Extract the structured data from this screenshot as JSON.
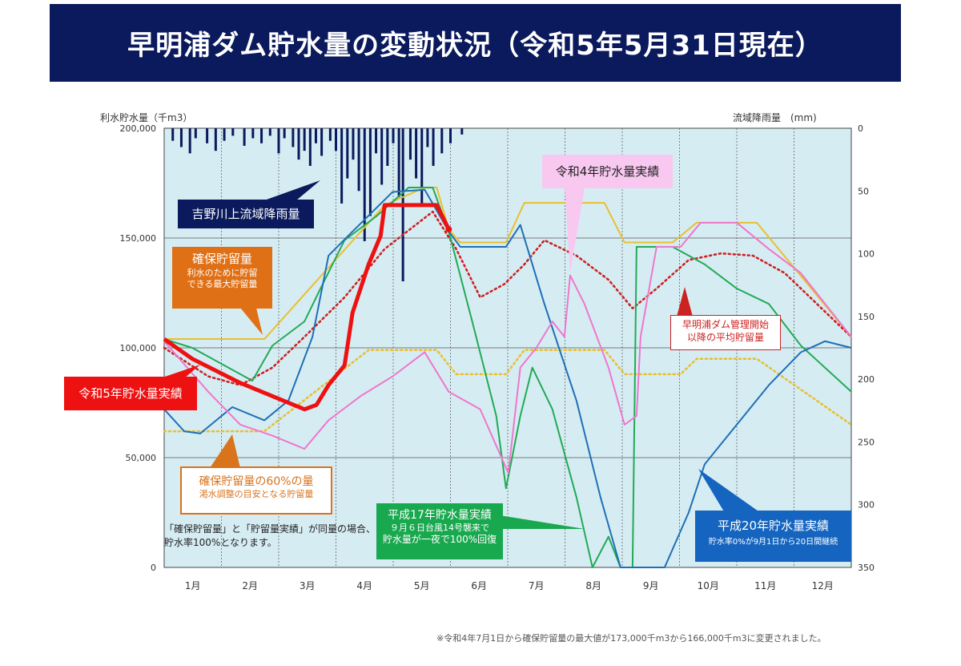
{
  "title": "早明浦ダム貯水量の変動状況（令和5年5月31日現在）",
  "chart_data": {
    "type": "line",
    "title": "早明浦ダム貯水量の変動状況（令和5年5月31日現在）",
    "ylabel": "利水貯水量（千m3）",
    "y2label": "流域降雨量　(mm)",
    "ylim": [
      0,
      200000
    ],
    "y2lim": [
      350,
      0
    ],
    "yticks": [
      "0",
      "50,000",
      "100,000",
      "150,000",
      "200,000"
    ],
    "y2ticks": [
      "0",
      "50",
      "100",
      "150",
      "200",
      "250",
      "300",
      "350"
    ],
    "xlim": [
      0,
      12
    ],
    "x_unit": "months since Jan 1",
    "categories": [
      "1月",
      "2月",
      "3月",
      "4月",
      "5月",
      "6月",
      "7月",
      "8月",
      "9月",
      "10月",
      "11月",
      "12月"
    ],
    "grid": true,
    "colors": {
      "r5": "#ee1111",
      "r4": "#ee77cc",
      "h17": "#22aa55",
      "h20": "#1f6fb5",
      "cap": "#e8c030",
      "cap60": "#e8c030",
      "avg": "#cc2222",
      "rain": "#0a1a5c",
      "bg": "#d6ecf3"
    },
    "series": [
      {
        "key": "cap",
        "name": "確保貯留量",
        "style": "solid",
        "x": [
          0,
          1.75,
          3.85,
          4.55,
          4.76,
          4.97,
          5.17,
          5.97,
          6.29,
          7.69,
          8.04,
          8.88,
          9.3,
          10.35,
          12
        ],
        "y": [
          104000,
          104000,
          165000,
          173000,
          173000,
          154000,
          148000,
          148000,
          166000,
          166000,
          148000,
          148000,
          157000,
          157000,
          105000
        ]
      },
      {
        "key": "cap60",
        "name": "確保貯留量の60%の量",
        "style": "dotted",
        "x": [
          0,
          1.75,
          3.57,
          4.76,
          5.1,
          5.97,
          6.29,
          7.69,
          8.04,
          9.02,
          9.3,
          10.35,
          12
        ],
        "y": [
          62000,
          62000,
          99000,
          99000,
          88000,
          88000,
          99000,
          99000,
          88000,
          88000,
          95000,
          95000,
          65000
        ]
      },
      {
        "key": "avg",
        "name": "早明浦ダム管理開始以降の平均貯留量",
        "style": "dotted",
        "x": [
          0,
          0.77,
          1.33,
          1.89,
          2.45,
          3.15,
          3.85,
          4.69,
          5.1,
          5.52,
          5.94,
          6.29,
          6.64,
          7.2,
          7.76,
          8.18,
          8.6,
          9.16,
          9.72,
          10.28,
          10.84,
          12
        ],
        "y": [
          100000,
          87000,
          83000,
          91000,
          105000,
          123000,
          145000,
          162000,
          145000,
          123000,
          129000,
          138000,
          149000,
          142000,
          131000,
          118000,
          127000,
          140000,
          143000,
          142000,
          134000,
          105000
        ]
      },
      {
        "key": "h17",
        "name": "平成17年貯水量実績",
        "style": "solid",
        "x": [
          0,
          0.49,
          1.33,
          1.54,
          1.89,
          2.45,
          2.73,
          3.15,
          3.71,
          4.27,
          4.69,
          4.97,
          5.38,
          5.8,
          5.97,
          6.22,
          6.43,
          6.78,
          7.2,
          7.48,
          7.76,
          7.97,
          8.18,
          8.25,
          8.88,
          9.44,
          10.0,
          10.56,
          11.12,
          12
        ],
        "y": [
          104000,
          100000,
          88000,
          85000,
          101000,
          112000,
          127000,
          149000,
          160000,
          173000,
          173000,
          153000,
          112000,
          69000,
          36000,
          69000,
          91000,
          72000,
          32000,
          0,
          14000,
          0,
          0,
          146000,
          146000,
          138000,
          127000,
          120000,
          101000,
          80000
        ]
      },
      {
        "key": "h20",
        "name": "平成20年貯水量実績",
        "style": "solid",
        "x": [
          0,
          0.35,
          0.63,
          1.19,
          1.75,
          2.17,
          2.59,
          2.87,
          3.29,
          3.99,
          4.55,
          4.97,
          5.17,
          5.97,
          6.22,
          6.64,
          7.2,
          7.62,
          7.97,
          8.74,
          9.16,
          9.44,
          10.0,
          10.56,
          11.12,
          11.54,
          12
        ],
        "y": [
          72000,
          62000,
          61000,
          73000,
          67000,
          76000,
          105000,
          142000,
          153000,
          171000,
          172000,
          153000,
          146000,
          146000,
          156000,
          120000,
          76000,
          32000,
          0,
          0,
          25000,
          47000,
          65000,
          83000,
          98000,
          103000,
          100000
        ]
      },
      {
        "key": "r4",
        "name": "令和4年貯水量実績",
        "style": "solid",
        "x": [
          0,
          0.77,
          1.33,
          1.89,
          2.45,
          2.87,
          3.43,
          3.99,
          4.55,
          4.97,
          5.52,
          6.01,
          6.22,
          6.5,
          6.78,
          6.99,
          7.09,
          7.34,
          7.76,
          8.04,
          8.25,
          8.32,
          8.6,
          9.02,
          9.37,
          10.0,
          10.56,
          11.12,
          12
        ],
        "y": [
          103000,
          80000,
          65000,
          60000,
          54000,
          67000,
          78000,
          87000,
          98000,
          80000,
          72000,
          43000,
          91000,
          100000,
          112000,
          105000,
          133000,
          120000,
          91000,
          65000,
          69000,
          105000,
          146000,
          146000,
          157000,
          157000,
          145000,
          134000,
          105000
        ]
      },
      {
        "key": "r5",
        "name": "令和5年貯水量実績",
        "style": "thick",
        "x": [
          0,
          0.49,
          1.33,
          1.89,
          2.45,
          2.66,
          2.87,
          3.15,
          3.29,
          3.57,
          3.78,
          3.85,
          4.76,
          4.97
        ],
        "y": [
          104000,
          95000,
          84000,
          78000,
          72000,
          74000,
          83000,
          92000,
          116000,
          138000,
          151000,
          165000,
          165000,
          154000
        ]
      }
    ],
    "rain": {
      "name": "吉野川上流域降雨量",
      "x": [
        0.15,
        0.3,
        0.45,
        0.55,
        0.75,
        0.9,
        1.05,
        1.2,
        1.4,
        1.55,
        1.7,
        1.85,
        2.0,
        2.1,
        2.25,
        2.35,
        2.45,
        2.55,
        2.65,
        2.75,
        2.9,
        3.0,
        3.1,
        3.2,
        3.3,
        3.4,
        3.5,
        3.6,
        3.7,
        3.8,
        3.9,
        4.0,
        4.1,
        4.17,
        4.3,
        4.4,
        4.5,
        4.6,
        4.7,
        4.85,
        5.0,
        5.2
      ],
      "mm": [
        10,
        15,
        20,
        8,
        12,
        18,
        10,
        6,
        14,
        8,
        12,
        6,
        20,
        8,
        15,
        25,
        18,
        30,
        12,
        22,
        10,
        18,
        60,
        40,
        25,
        50,
        90,
        70,
        20,
        45,
        30,
        12,
        55,
        122,
        25,
        40,
        60,
        15,
        30,
        20,
        12,
        5
      ]
    }
  },
  "annotations": {
    "rain": "吉野川上流域降雨量",
    "cap": {
      "title": "確保貯留量",
      "line1": "利水のために貯留",
      "line2": "できる最大貯留量"
    },
    "r5": "令和5年貯水量実績",
    "cap60": {
      "title": "確保貯留量の60%の量",
      "line1": "渇水調整の目安となる貯留量"
    },
    "note": {
      "line1": "「確保貯留量」と「貯留量実績」が同量の場合、",
      "line2": "貯水率100%となります。"
    },
    "h17": {
      "title": "平成17年貯水量実績",
      "line1": "９月６日台風14号襲来で",
      "line2": "貯水量が一夜で100%回復"
    },
    "h20": {
      "title": "平成20年貯水量実績",
      "line1": "貯水率0%が9月1日から20日間継続"
    },
    "r4": "令和4年貯水量実績",
    "avg": {
      "line1": "早明浦ダム管理開始",
      "line2": "以降の平均貯留量"
    }
  },
  "footnote": "※令和4年7月1日から確保貯留量の最大値が173,000千m3から166,000千m3に変更されました。"
}
